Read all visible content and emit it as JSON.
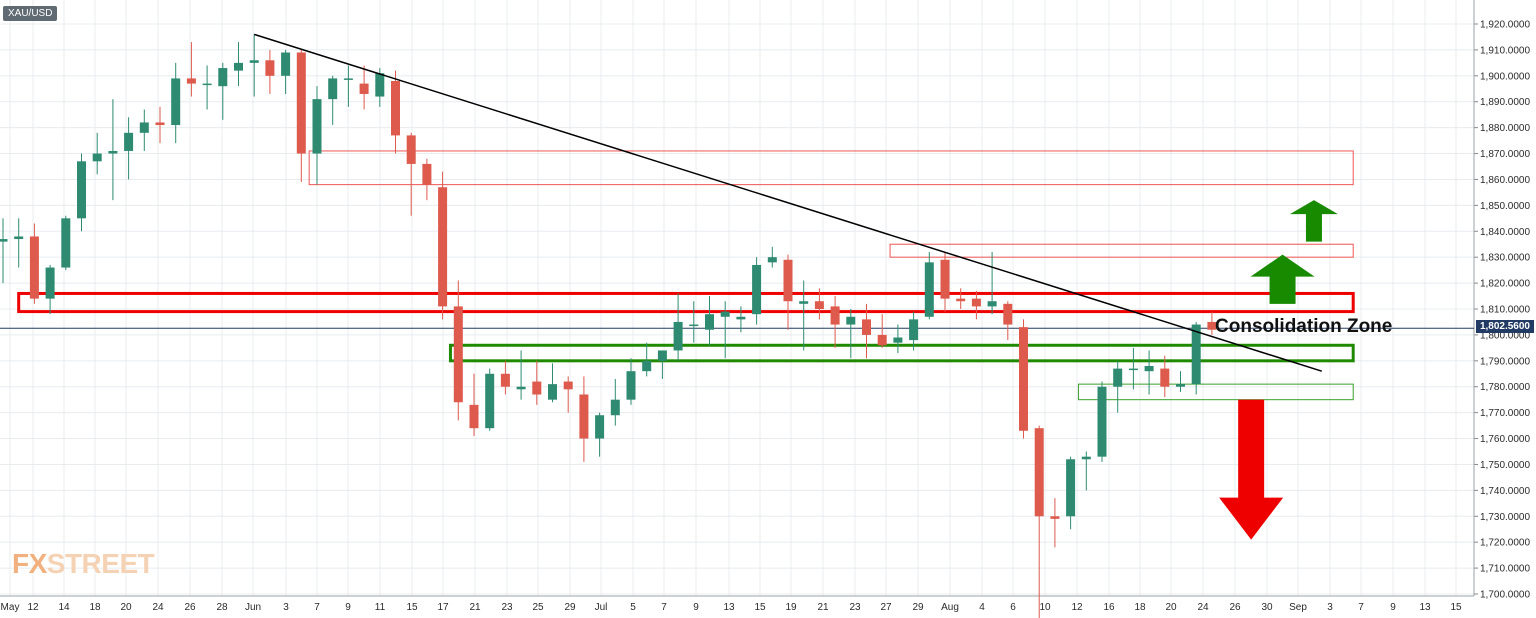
{
  "chart_data": {
    "type": "candlestick",
    "symbol": "XAU/USD",
    "last_price": "1,802.5600",
    "last_price_value": 1802.56,
    "ylim": [
      1700,
      1925
    ],
    "y_ticks": [
      "1,920.0000",
      "1,910.0000",
      "1,900.0000",
      "1,890.0000",
      "1,880.0000",
      "1,870.0000",
      "1,860.0000",
      "1,850.0000",
      "1,840.0000",
      "1,830.0000",
      "1,820.0000",
      "1,810.0000",
      "1,800.0000",
      "1,790.0000",
      "1,780.0000",
      "1,770.0000",
      "1,760.0000",
      "1,750.0000",
      "1,740.0000",
      "1,730.0000",
      "1,720.0000",
      "1,710.0000",
      "1,700.0000"
    ],
    "x_ticks": [
      "May",
      "12",
      "14",
      "18",
      "20",
      "24",
      "26",
      "28",
      "Jun",
      "3",
      "7",
      "9",
      "11",
      "15",
      "17",
      "21",
      "23",
      "25",
      "29",
      "Jul",
      "5",
      "7",
      "9",
      "13",
      "15",
      "19",
      "21",
      "23",
      "27",
      "29",
      "Aug",
      "4",
      "6",
      "10",
      "12",
      "16",
      "18",
      "20",
      "24",
      "26",
      "30",
      "Sep",
      "3",
      "7",
      "9",
      "13",
      "15"
    ],
    "grid": true,
    "candles": [
      {
        "o": 1836,
        "h": 1845,
        "l": 1820,
        "c": 1837
      },
      {
        "o": 1837,
        "h": 1845,
        "l": 1826,
        "c": 1838
      },
      {
        "o": 1838,
        "h": 1843,
        "l": 1812,
        "c": 1814
      },
      {
        "o": 1814,
        "h": 1827,
        "l": 1808,
        "c": 1826
      },
      {
        "o": 1826,
        "h": 1846,
        "l": 1825,
        "c": 1845
      },
      {
        "o": 1845,
        "h": 1870,
        "l": 1840,
        "c": 1867
      },
      {
        "o": 1867,
        "h": 1878,
        "l": 1862,
        "c": 1870
      },
      {
        "o": 1870,
        "h": 1891,
        "l": 1852,
        "c": 1871
      },
      {
        "o": 1871,
        "h": 1884,
        "l": 1860,
        "c": 1878
      },
      {
        "o": 1878,
        "h": 1887,
        "l": 1871,
        "c": 1882
      },
      {
        "o": 1882,
        "h": 1888,
        "l": 1874,
        "c": 1881
      },
      {
        "o": 1881,
        "h": 1905,
        "l": 1874,
        "c": 1899
      },
      {
        "o": 1899,
        "h": 1913,
        "l": 1892,
        "c": 1897
      },
      {
        "o": 1897,
        "h": 1904,
        "l": 1887,
        "c": 1897
      },
      {
        "o": 1896,
        "h": 1905,
        "l": 1883,
        "c": 1903
      },
      {
        "o": 1902,
        "h": 1913,
        "l": 1896,
        "c": 1905
      },
      {
        "o": 1905,
        "h": 1916,
        "l": 1892,
        "c": 1906
      },
      {
        "o": 1906,
        "h": 1910,
        "l": 1893,
        "c": 1900
      },
      {
        "o": 1900,
        "h": 1910,
        "l": 1893,
        "c": 1909
      },
      {
        "o": 1909,
        "h": 1910,
        "l": 1859,
        "c": 1870
      },
      {
        "o": 1870,
        "h": 1896,
        "l": 1858,
        "c": 1891
      },
      {
        "o": 1891,
        "h": 1900,
        "l": 1881,
        "c": 1899
      },
      {
        "o": 1899,
        "h": 1904,
        "l": 1888,
        "c": 1899
      },
      {
        "o": 1897,
        "h": 1904,
        "l": 1887,
        "c": 1893
      },
      {
        "o": 1892,
        "h": 1903,
        "l": 1888,
        "c": 1901
      },
      {
        "o": 1898,
        "h": 1902,
        "l": 1870,
        "c": 1877
      },
      {
        "o": 1877,
        "h": 1878,
        "l": 1846,
        "c": 1866
      },
      {
        "o": 1866,
        "h": 1868,
        "l": 1852,
        "c": 1858
      },
      {
        "o": 1857,
        "h": 1863,
        "l": 1806,
        "c": 1811
      },
      {
        "o": 1811,
        "h": 1821,
        "l": 1767,
        "c": 1774
      },
      {
        "o": 1773,
        "h": 1785,
        "l": 1761,
        "c": 1764
      },
      {
        "o": 1764,
        "h": 1787,
        "l": 1763,
        "c": 1785
      },
      {
        "o": 1785,
        "h": 1790,
        "l": 1777,
        "c": 1780
      },
      {
        "o": 1779,
        "h": 1794,
        "l": 1775,
        "c": 1780
      },
      {
        "o": 1782,
        "h": 1790,
        "l": 1773,
        "c": 1777
      },
      {
        "o": 1775,
        "h": 1789,
        "l": 1774,
        "c": 1781
      },
      {
        "o": 1782,
        "h": 1784,
        "l": 1770,
        "c": 1779
      },
      {
        "o": 1777,
        "h": 1784,
        "l": 1751,
        "c": 1760
      },
      {
        "o": 1760,
        "h": 1770,
        "l": 1753,
        "c": 1769
      },
      {
        "o": 1769,
        "h": 1783,
        "l": 1765,
        "c": 1775
      },
      {
        "o": 1775,
        "h": 1791,
        "l": 1773,
        "c": 1786
      },
      {
        "o": 1786,
        "h": 1797,
        "l": 1784,
        "c": 1790
      },
      {
        "o": 1790,
        "h": 1794,
        "l": 1783,
        "c": 1794
      },
      {
        "o": 1794,
        "h": 1816,
        "l": 1790,
        "c": 1805
      },
      {
        "o": 1804,
        "h": 1813,
        "l": 1797,
        "c": 1804
      },
      {
        "o": 1802,
        "h": 1815,
        "l": 1796,
        "c": 1808
      },
      {
        "o": 1807,
        "h": 1813,
        "l": 1791,
        "c": 1809
      },
      {
        "o": 1806,
        "h": 1811,
        "l": 1801,
        "c": 1807
      },
      {
        "o": 1808,
        "h": 1830,
        "l": 1804,
        "c": 1827
      },
      {
        "o": 1828,
        "h": 1834,
        "l": 1826,
        "c": 1830
      },
      {
        "o": 1829,
        "h": 1831,
        "l": 1802,
        "c": 1813
      },
      {
        "o": 1812,
        "h": 1821,
        "l": 1794,
        "c": 1813
      },
      {
        "o": 1813,
        "h": 1818,
        "l": 1806,
        "c": 1810
      },
      {
        "o": 1811,
        "h": 1815,
        "l": 1795,
        "c": 1804
      },
      {
        "o": 1804,
        "h": 1810,
        "l": 1791,
        "c": 1807
      },
      {
        "o": 1806,
        "h": 1812,
        "l": 1791,
        "c": 1800
      },
      {
        "o": 1800,
        "h": 1808,
        "l": 1795,
        "c": 1796
      },
      {
        "o": 1797,
        "h": 1804,
        "l": 1793,
        "c": 1799
      },
      {
        "o": 1798,
        "h": 1809,
        "l": 1794,
        "c": 1806
      },
      {
        "o": 1807,
        "h": 1832,
        "l": 1806,
        "c": 1828
      },
      {
        "o": 1829,
        "h": 1832,
        "l": 1809,
        "c": 1814
      },
      {
        "o": 1814,
        "h": 1818,
        "l": 1810,
        "c": 1813
      },
      {
        "o": 1814,
        "h": 1817,
        "l": 1806,
        "c": 1811
      },
      {
        "o": 1811,
        "h": 1832,
        "l": 1808,
        "c": 1813
      },
      {
        "o": 1812,
        "h": 1813,
        "l": 1798,
        "c": 1804
      },
      {
        "o": 1803,
        "h": 1806,
        "l": 1760,
        "c": 1763
      },
      {
        "o": 1764,
        "h": 1765,
        "l": 1687,
        "c": 1730
      },
      {
        "o": 1730,
        "h": 1737,
        "l": 1718,
        "c": 1729
      },
      {
        "o": 1730,
        "h": 1753,
        "l": 1725,
        "c": 1752
      },
      {
        "o": 1752,
        "h": 1755,
        "l": 1740,
        "c": 1753
      },
      {
        "o": 1753,
        "h": 1782,
        "l": 1751,
        "c": 1780
      },
      {
        "o": 1780,
        "h": 1790,
        "l": 1770,
        "c": 1787
      },
      {
        "o": 1787,
        "h": 1795,
        "l": 1779,
        "c": 1787
      },
      {
        "o": 1786,
        "h": 1794,
        "l": 1777,
        "c": 1788
      },
      {
        "o": 1787,
        "h": 1792,
        "l": 1776,
        "c": 1780
      },
      {
        "o": 1780,
        "h": 1786,
        "l": 1778,
        "c": 1781
      },
      {
        "o": 1781,
        "h": 1805,
        "l": 1777,
        "c": 1804
      },
      {
        "o": 1805,
        "h": 1809,
        "l": 1800,
        "c": 1802
      }
    ],
    "annotations": {
      "zone_label": "Consolidation Zone",
      "trendline": {
        "from_bar": 16,
        "from_price": 1916,
        "to_bar": 84,
        "to_price": 1786
      },
      "red_zones": [
        {
          "from_bar": 19.5,
          "to_bar": 86,
          "top": 1871,
          "bottom": 1858,
          "style": "thin"
        },
        {
          "from_bar": 56.5,
          "to_bar": 86,
          "top": 1835,
          "bottom": 1830,
          "style": "thin"
        },
        {
          "from_bar": 1,
          "to_bar": 86,
          "top": 1816,
          "bottom": 1809,
          "style": "bold"
        }
      ],
      "green_zones": [
        {
          "from_bar": 28.5,
          "to_bar": 86,
          "top": 1796,
          "bottom": 1790,
          "style": "bold"
        },
        {
          "from_bar": 68.5,
          "to_bar": 86,
          "top": 1781,
          "bottom": 1775,
          "style": "thin"
        }
      ],
      "arrows": [
        {
          "direction": "up",
          "color": "#188a00",
          "size": "small",
          "bar": 83.5,
          "from_price": 1836,
          "to_price": 1852
        },
        {
          "direction": "up",
          "color": "#188a00",
          "size": "large",
          "bar": 81.5,
          "from_price": 1812,
          "to_price": 1831
        },
        {
          "direction": "down",
          "color": "#ee0000",
          "size": "large",
          "bar": 79.5,
          "from_price": 1775,
          "to_price": 1721
        }
      ]
    },
    "colors": {
      "up": "#2e8b72",
      "down": "#dd5a4d",
      "grid": "#e8ecef",
      "trend": "#000000"
    }
  },
  "watermark": {
    "fx": "FX",
    "street": "STREET"
  }
}
